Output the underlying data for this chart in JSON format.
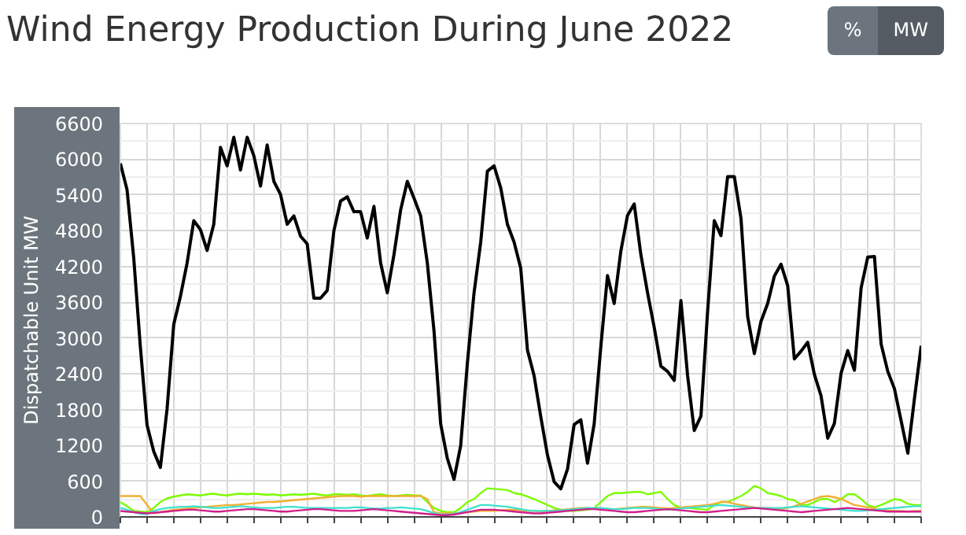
{
  "chart_data": {
    "type": "line",
    "title": "Wind Energy Production During June 2022",
    "ylabel": "Dispatchable Unit MW",
    "annotations": [
      "%",
      "MW"
    ],
    "categories": [
      null,
      null,
      null,
      null,
      null,
      null,
      null,
      null,
      null,
      null,
      null,
      null,
      null,
      null,
      null,
      null,
      null,
      null,
      null,
      null,
      null,
      null,
      null,
      null,
      null,
      null,
      null,
      null,
      null,
      null,
      null,
      null,
      null,
      null,
      null,
      null,
      null,
      null,
      null,
      null,
      null,
      null,
      null,
      null,
      null,
      null,
      null,
      null,
      null,
      null,
      null,
      null,
      null,
      null,
      null,
      null,
      null,
      null,
      null,
      null,
      null,
      null,
      null,
      null,
      null,
      null,
      null,
      null,
      null,
      null,
      null,
      null,
      null,
      null,
      null,
      null,
      null,
      null,
      null,
      null,
      null,
      null,
      null,
      null,
      null,
      null,
      null,
      null,
      null,
      null,
      null,
      null,
      null,
      null,
      null,
      null,
      null,
      null,
      null,
      null,
      null,
      null,
      null,
      null,
      null,
      null,
      null,
      null,
      null,
      null,
      null,
      null,
      null,
      null,
      null,
      null,
      null,
      null,
      null,
      null,
      null
    ],
    "ylim": [
      0,
      6600
    ],
    "yticks": [
      0,
      600,
      1200,
      1800,
      2400,
      3000,
      3600,
      4200,
      4800,
      5400,
      6000,
      6600
    ],
    "tick_labels": "y",
    "grid": true,
    "marker": "none",
    "line_style": "solid",
    "series": [
      {
        "color": "#7cfc00",
        "values": [
          250,
          180,
          100,
          90,
          80,
          150,
          250,
          310,
          340,
          360,
          380,
          370,
          360,
          380,
          390,
          370,
          360,
          380,
          390,
          380,
          390,
          380,
          370,
          380,
          360,
          370,
          380,
          370,
          380,
          390,
          370,
          360,
          380,
          380,
          370,
          380,
          360,
          350,
          370,
          380,
          360,
          350,
          360,
          370,
          360,
          360,
          250,
          150,
          100,
          80,
          80,
          150,
          250,
          300,
          400,
          480,
          470,
          460,
          450,
          400,
          380,
          340,
          300,
          250,
          200,
          150,
          120,
          100,
          100,
          110,
          120,
          150,
          250,
          350,
          400,
          400,
          410,
          420,
          420,
          380,
          400,
          420,
          300,
          200,
          150,
          150,
          140,
          130,
          120,
          200,
          250,
          250,
          300,
          350,
          420,
          520,
          480,
          400,
          380,
          350,
          300,
          280,
          200,
          200,
          250,
          300,
          300,
          250,
          300,
          380,
          380,
          300,
          200,
          160,
          200,
          250,
          300,
          280,
          220,
          200,
          200
        ]
      },
      {
        "color": "#f0b030",
        "values": [
          350,
          350,
          350,
          350,
          200,
          60,
          80,
          100,
          120,
          130,
          140,
          150,
          160,
          170,
          180,
          190,
          200,
          200,
          210,
          220,
          230,
          240,
          250,
          250,
          260,
          270,
          280,
          290,
          300,
          310,
          320,
          330,
          340,
          350,
          350,
          350,
          340,
          350,
          350,
          350,
          350,
          350,
          350,
          350,
          350,
          350,
          300,
          80,
          60,
          60,
          60,
          70,
          80,
          90,
          100,
          100,
          100,
          110,
          120,
          120,
          110,
          100,
          100,
          90,
          100,
          110,
          120,
          130,
          140,
          150,
          150,
          140,
          130,
          120,
          130,
          140,
          150,
          160,
          170,
          170,
          160,
          150,
          140,
          150,
          160,
          170,
          180,
          190,
          200,
          220,
          250,
          250,
          220,
          200,
          180,
          160,
          150,
          150,
          140,
          130,
          150,
          180,
          220,
          260,
          300,
          340,
          350,
          330,
          300,
          250,
          200,
          180,
          160,
          140,
          120,
          110,
          100,
          100,
          90,
          100,
          100
        ]
      },
      {
        "color": "#40e0d0",
        "values": [
          150,
          120,
          80,
          50,
          50,
          100,
          130,
          150,
          160,
          170,
          170,
          180,
          170,
          160,
          150,
          150,
          160,
          170,
          180,
          170,
          160,
          150,
          150,
          150,
          160,
          170,
          170,
          160,
          150,
          150,
          150,
          150,
          150,
          150,
          150,
          160,
          160,
          150,
          140,
          140,
          150,
          150,
          160,
          150,
          140,
          130,
          100,
          60,
          40,
          40,
          50,
          80,
          120,
          160,
          200,
          200,
          190,
          180,
          170,
          150,
          130,
          110,
          100,
          100,
          100,
          100,
          110,
          120,
          130,
          140,
          150,
          150,
          150,
          140,
          130,
          130,
          140,
          150,
          150,
          150,
          140,
          130,
          120,
          130,
          140,
          150,
          160,
          170,
          180,
          190,
          200,
          190,
          180,
          170,
          160,
          150,
          150,
          150,
          150,
          150,
          160,
          170,
          180,
          170,
          160,
          150,
          140,
          130,
          120,
          110,
          100,
          100,
          110,
          120,
          130,
          140,
          150,
          160,
          170,
          180,
          180
        ]
      },
      {
        "color": "#d0208a",
        "values": [
          100,
          90,
          80,
          70,
          60,
          70,
          80,
          90,
          100,
          110,
          120,
          120,
          110,
          100,
          90,
          90,
          100,
          110,
          120,
          130,
          130,
          120,
          110,
          100,
          90,
          90,
          100,
          110,
          120,
          130,
          130,
          120,
          110,
          100,
          100,
          100,
          110,
          120,
          130,
          120,
          110,
          100,
          90,
          80,
          70,
          60,
          50,
          40,
          30,
          30,
          40,
          60,
          80,
          100,
          120,
          120,
          120,
          110,
          100,
          90,
          80,
          70,
          60,
          60,
          70,
          80,
          90,
          100,
          110,
          120,
          130,
          130,
          120,
          110,
          100,
          90,
          80,
          80,
          90,
          100,
          110,
          120,
          130,
          120,
          110,
          100,
          90,
          80,
          80,
          90,
          100,
          110,
          120,
          130,
          140,
          150,
          140,
          130,
          120,
          110,
          100,
          90,
          80,
          90,
          100,
          110,
          120,
          130,
          140,
          150,
          140,
          130,
          120,
          110,
          100,
          90,
          90,
          90,
          90,
          90,
          90
        ]
      },
      {
        "color": "#000000",
        "values": [
          5930,
          5490,
          4350,
          2850,
          1540,
          1100,
          830,
          1810,
          3230,
          3700,
          4260,
          4970,
          4820,
          4470,
          4910,
          6200,
          5890,
          6370,
          5820,
          6370,
          6060,
          5550,
          6240,
          5630,
          5410,
          4910,
          5050,
          4710,
          4580,
          3670,
          3670,
          3800,
          4800,
          5300,
          5370,
          5120,
          5120,
          4680,
          5210,
          4260,
          3760,
          4400,
          5150,
          5630,
          5350,
          5050,
          4260,
          3120,
          1560,
          980,
          630,
          1200,
          2580,
          3760,
          4610,
          5800,
          5890,
          5520,
          4910,
          4610,
          4170,
          2800,
          2370,
          1680,
          1040,
          590,
          470,
          800,
          1550,
          1630,
          900,
          1560,
          2860,
          4050,
          3580,
          4460,
          5060,
          5250,
          4400,
          3760,
          3180,
          2530,
          2440,
          2290,
          3630,
          2370,
          1450,
          1690,
          3450,
          4970,
          4720,
          5710,
          5710,
          5010,
          3360,
          2740,
          3280,
          3580,
          4040,
          4240,
          3880,
          2650,
          2780,
          2930,
          2390,
          2030,
          1320,
          1570,
          2410,
          2790,
          2460,
          3840,
          4360,
          4370,
          2900,
          2440,
          2150,
          1610,
          1070,
          1990,
          2870
        ]
      }
    ]
  }
}
